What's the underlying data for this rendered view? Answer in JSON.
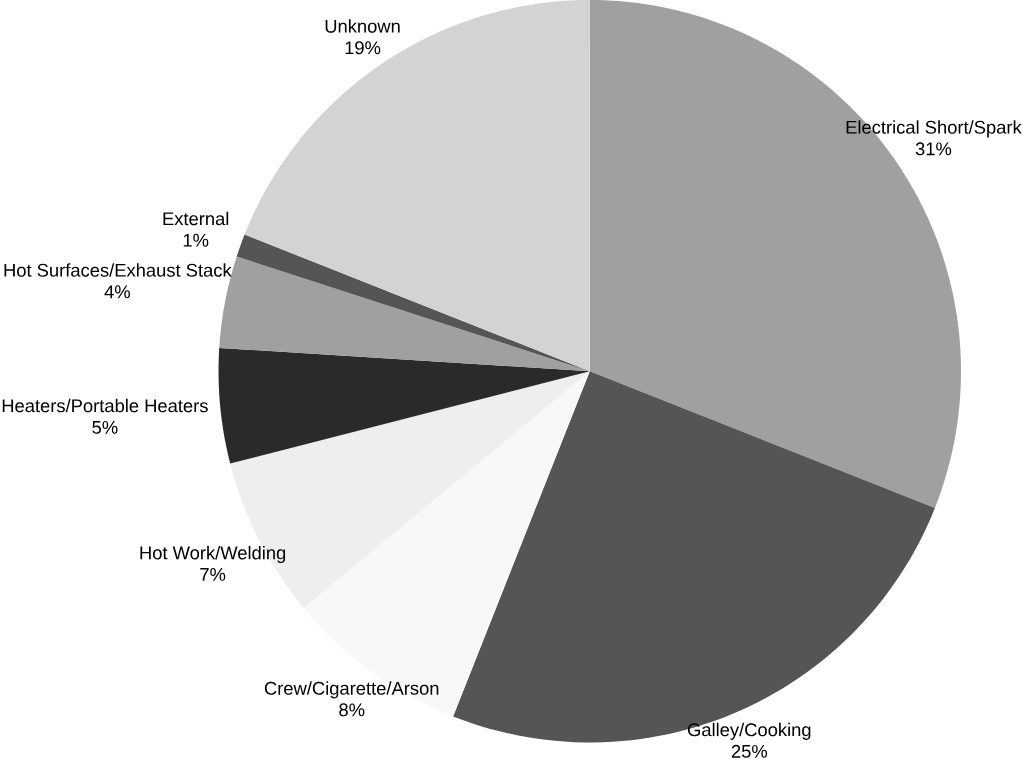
{
  "chart_data": {
    "type": "pie",
    "categories": [
      "Electrical Short/Spark",
      "Galley/Cooking",
      "Crew/Cigarette/Arson",
      "Hot Work/Welding",
      "Heaters/Portable Heaters",
      "Hot Surfaces/Exhaust Stack",
      "External",
      "Unknown"
    ],
    "values": [
      31,
      25,
      8,
      7,
      5,
      4,
      1,
      19
    ],
    "value_labels": [
      "31%",
      "25%",
      "8%",
      "7%",
      "5%",
      "4%",
      "1%",
      "19%"
    ],
    "colors": [
      "#a0a0a0",
      "#555555",
      "#f8f8f8",
      "#eeeeee",
      "#2a2a2a",
      "#a0a0a0",
      "#555555",
      "#d3d3d3"
    ]
  }
}
